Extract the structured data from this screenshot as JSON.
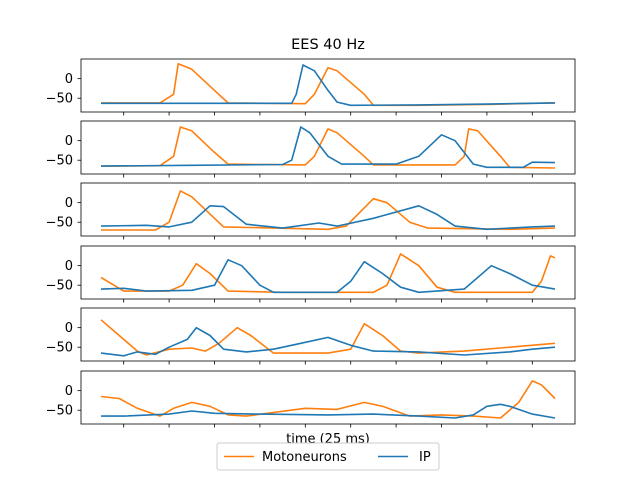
{
  "chart_data": {
    "type": "line",
    "title": "EES 40 Hz",
    "xlabel": "time (25 ms)",
    "ylabel": "",
    "ylim": [
      -75,
      40
    ],
    "yticks": [
      0,
      -50
    ],
    "grid": false,
    "legend": {
      "placement": "bottom-center",
      "entries": [
        "Motoneurons",
        "IP"
      ]
    },
    "colors": {
      "Motoneurons": "#ff7f0e",
      "IP": "#1f77b4"
    },
    "x": [
      0,
      0.05,
      0.1,
      0.15,
      0.2,
      0.25,
      0.3,
      0.35,
      0.4,
      0.45,
      0.5,
      0.55,
      0.6,
      0.65,
      0.7,
      0.75,
      0.8,
      0.85,
      0.9,
      0.95,
      1
    ],
    "panels": [
      {
        "series": [
          {
            "name": "Motoneurons",
            "values": [
              -62,
              -62,
              -62,
              -62,
              -62,
              -62,
              -62,
              -62,
              -62,
              -62,
              -62,
              -62,
              -62,
              -62,
              -62,
              -62,
              -62,
              -62,
              -62,
              -62,
              -62
            ],
            "points": [
              [
                0,
                -62
              ],
              [
                0.13,
                -62
              ],
              [
                0.16,
                -40
              ],
              [
                0.17,
                38
              ],
              [
                0.2,
                24
              ],
              [
                0.25,
                -30
              ],
              [
                0.28,
                -62
              ],
              [
                0.45,
                -64
              ],
              [
                0.47,
                -40
              ],
              [
                0.5,
                28
              ],
              [
                0.52,
                20
              ],
              [
                0.58,
                -40
              ],
              [
                0.6,
                -68
              ],
              [
                0.7,
                -68
              ],
              [
                0.85,
                -66
              ],
              [
                0.95,
                -63
              ],
              [
                1,
                -62
              ]
            ]
          },
          {
            "name": "IP",
            "values": [],
            "points": [
              [
                0,
                -63
              ],
              [
                0.2,
                -63
              ],
              [
                0.38,
                -63
              ],
              [
                0.42,
                -63
              ],
              [
                0.43,
                -40
              ],
              [
                0.445,
                35
              ],
              [
                0.47,
                20
              ],
              [
                0.5,
                -30
              ],
              [
                0.52,
                -60
              ],
              [
                0.55,
                -68
              ],
              [
                0.7,
                -67
              ],
              [
                0.85,
                -65
              ],
              [
                1,
                -62
              ]
            ]
          }
        ]
      },
      {
        "series": [
          {
            "name": "Motoneurons",
            "points": [
              [
                0,
                -65
              ],
              [
                0.13,
                -64
              ],
              [
                0.16,
                -40
              ],
              [
                0.175,
                35
              ],
              [
                0.2,
                25
              ],
              [
                0.25,
                -30
              ],
              [
                0.28,
                -60
              ],
              [
                0.45,
                -62
              ],
              [
                0.47,
                -40
              ],
              [
                0.5,
                30
              ],
              [
                0.52,
                20
              ],
              [
                0.58,
                -40
              ],
              [
                0.6,
                -62
              ],
              [
                0.78,
                -62
              ],
              [
                0.8,
                -40
              ],
              [
                0.81,
                30
              ],
              [
                0.83,
                25
              ],
              [
                0.88,
                -40
              ],
              [
                0.9,
                -68
              ],
              [
                1,
                -70
              ]
            ]
          },
          {
            "name": "IP",
            "points": [
              [
                0,
                -65
              ],
              [
                0.2,
                -63
              ],
              [
                0.4,
                -61
              ],
              [
                0.42,
                -50
              ],
              [
                0.44,
                35
              ],
              [
                0.46,
                20
              ],
              [
                0.5,
                -40
              ],
              [
                0.53,
                -60
              ],
              [
                0.65,
                -60
              ],
              [
                0.7,
                -40
              ],
              [
                0.75,
                15
              ],
              [
                0.78,
                0
              ],
              [
                0.82,
                -60
              ],
              [
                0.85,
                -68
              ],
              [
                0.93,
                -68
              ],
              [
                0.95,
                -55
              ],
              [
                1,
                -56
              ]
            ]
          }
        ]
      },
      {
        "series": [
          {
            "name": "Motoneurons",
            "points": [
              [
                0,
                -70
              ],
              [
                0.12,
                -70
              ],
              [
                0.15,
                -50
              ],
              [
                0.175,
                30
              ],
              [
                0.2,
                15
              ],
              [
                0.25,
                -40
              ],
              [
                0.27,
                -62
              ],
              [
                0.5,
                -68
              ],
              [
                0.54,
                -60
              ],
              [
                0.6,
                10
              ],
              [
                0.63,
                0
              ],
              [
                0.68,
                -50
              ],
              [
                0.72,
                -65
              ],
              [
                0.9,
                -68
              ],
              [
                1,
                -65
              ]
            ]
          },
          {
            "name": "IP",
            "points": [
              [
                0,
                -60
              ],
              [
                0.1,
                -58
              ],
              [
                0.15,
                -62
              ],
              [
                0.2,
                -50
              ],
              [
                0.24,
                -8
              ],
              [
                0.27,
                -10
              ],
              [
                0.32,
                -55
              ],
              [
                0.4,
                -65
              ],
              [
                0.48,
                -52
              ],
              [
                0.52,
                -60
              ],
              [
                0.6,
                -40
              ],
              [
                0.7,
                -8
              ],
              [
                0.74,
                -30
              ],
              [
                0.78,
                -60
              ],
              [
                0.85,
                -68
              ],
              [
                0.95,
                -62
              ],
              [
                1,
                -60
              ]
            ]
          }
        ]
      },
      {
        "series": [
          {
            "name": "Motoneurons",
            "points": [
              [
                0,
                -30
              ],
              [
                0.05,
                -65
              ],
              [
                0.15,
                -65
              ],
              [
                0.18,
                -50
              ],
              [
                0.21,
                5
              ],
              [
                0.24,
                -20
              ],
              [
                0.28,
                -65
              ],
              [
                0.4,
                -68
              ],
              [
                0.6,
                -68
              ],
              [
                0.63,
                -50
              ],
              [
                0.66,
                30
              ],
              [
                0.7,
                0
              ],
              [
                0.74,
                -55
              ],
              [
                0.78,
                -68
              ],
              [
                0.95,
                -68
              ],
              [
                0.97,
                -40
              ],
              [
                0.99,
                25
              ],
              [
                1,
                20
              ]
            ]
          },
          {
            "name": "IP",
            "points": [
              [
                0,
                -60
              ],
              [
                0.05,
                -58
              ],
              [
                0.1,
                -65
              ],
              [
                0.2,
                -63
              ],
              [
                0.25,
                -50
              ],
              [
                0.28,
                15
              ],
              [
                0.31,
                0
              ],
              [
                0.35,
                -50
              ],
              [
                0.38,
                -68
              ],
              [
                0.52,
                -68
              ],
              [
                0.55,
                -40
              ],
              [
                0.58,
                10
              ],
              [
                0.62,
                -20
              ],
              [
                0.66,
                -55
              ],
              [
                0.7,
                -68
              ],
              [
                0.8,
                -60
              ],
              [
                0.86,
                0
              ],
              [
                0.9,
                -20
              ],
              [
                0.95,
                -50
              ],
              [
                1,
                -60
              ]
            ]
          }
        ]
      },
      {
        "series": [
          {
            "name": "Motoneurons",
            "points": [
              [
                0,
                20
              ],
              [
                0.04,
                -20
              ],
              [
                0.08,
                -60
              ],
              [
                0.1,
                -70
              ],
              [
                0.15,
                -55
              ],
              [
                0.2,
                -52
              ],
              [
                0.23,
                -60
              ],
              [
                0.26,
                -40
              ],
              [
                0.3,
                0
              ],
              [
                0.33,
                -20
              ],
              [
                0.38,
                -65
              ],
              [
                0.5,
                -65
              ],
              [
                0.55,
                -55
              ],
              [
                0.58,
                10
              ],
              [
                0.62,
                -20
              ],
              [
                0.66,
                -60
              ],
              [
                0.7,
                -65
              ],
              [
                0.8,
                -60
              ],
              [
                0.9,
                -50
              ],
              [
                1,
                -40
              ]
            ]
          },
          {
            "name": "IP",
            "points": [
              [
                0,
                -65
              ],
              [
                0.05,
                -72
              ],
              [
                0.08,
                -62
              ],
              [
                0.12,
                -68
              ],
              [
                0.15,
                -50
              ],
              [
                0.19,
                -30
              ],
              [
                0.21,
                0
              ],
              [
                0.24,
                -20
              ],
              [
                0.27,
                -55
              ],
              [
                0.32,
                -62
              ],
              [
                0.38,
                -55
              ],
              [
                0.44,
                -40
              ],
              [
                0.5,
                -25
              ],
              [
                0.55,
                -45
              ],
              [
                0.6,
                -60
              ],
              [
                0.7,
                -62
              ],
              [
                0.8,
                -70
              ],
              [
                0.9,
                -62
              ],
              [
                0.95,
                -55
              ],
              [
                1,
                -50
              ]
            ]
          }
        ]
      },
      {
        "series": [
          {
            "name": "Motoneurons",
            "points": [
              [
                0,
                -15
              ],
              [
                0.04,
                -20
              ],
              [
                0.08,
                -45
              ],
              [
                0.13,
                -65
              ],
              [
                0.16,
                -45
              ],
              [
                0.2,
                -30
              ],
              [
                0.24,
                -40
              ],
              [
                0.28,
                -62
              ],
              [
                0.32,
                -65
              ],
              [
                0.45,
                -45
              ],
              [
                0.52,
                -48
              ],
              [
                0.58,
                -30
              ],
              [
                0.62,
                -40
              ],
              [
                0.68,
                -65
              ],
              [
                0.75,
                -62
              ],
              [
                0.82,
                -65
              ],
              [
                0.88,
                -70
              ],
              [
                0.92,
                -30
              ],
              [
                0.95,
                25
              ],
              [
                0.97,
                15
              ],
              [
                1,
                -20
              ]
            ]
          },
          {
            "name": "IP",
            "points": [
              [
                0,
                -65
              ],
              [
                0.05,
                -65
              ],
              [
                0.15,
                -60
              ],
              [
                0.2,
                -52
              ],
              [
                0.25,
                -58
              ],
              [
                0.35,
                -60
              ],
              [
                0.5,
                -62
              ],
              [
                0.6,
                -60
              ],
              [
                0.7,
                -65
              ],
              [
                0.78,
                -70
              ],
              [
                0.82,
                -62
              ],
              [
                0.85,
                -40
              ],
              [
                0.88,
                -35
              ],
              [
                0.9,
                -40
              ],
              [
                0.95,
                -60
              ],
              [
                1,
                -70
              ]
            ]
          }
        ]
      }
    ]
  }
}
